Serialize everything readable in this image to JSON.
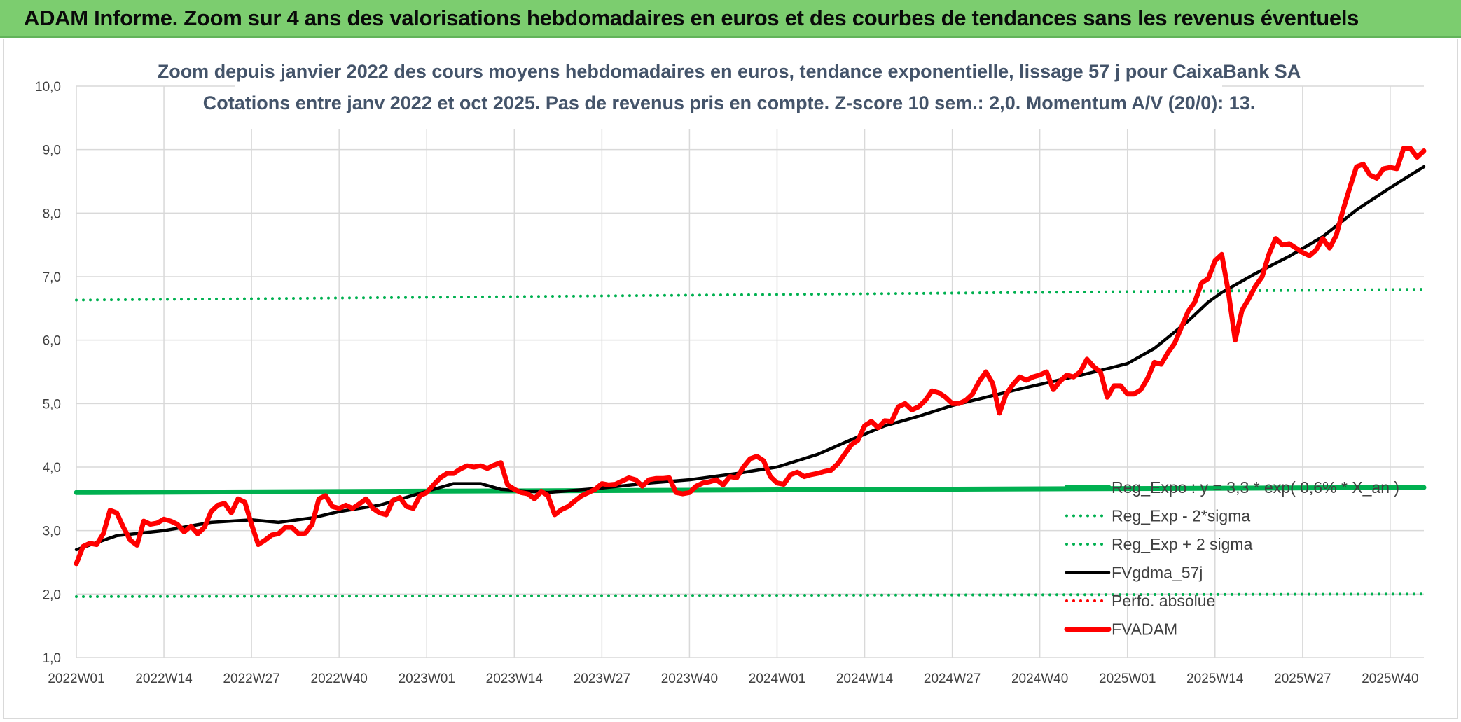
{
  "header": {
    "title": "ADAM Informe. Zoom sur 4 ans des valorisations hebdomadaires en euros et des courbes de tendances sans les revenus éventuels"
  },
  "colors": {
    "banner": "#7ccd6f",
    "grid": "#d9d9d9",
    "title_text": "#44546a",
    "green": "#00b050",
    "red": "#ff0000",
    "black": "#000000"
  },
  "chart_data": {
    "type": "line",
    "title": "Zoom depuis janvier 2022 des cours moyens hebdomadaires en euros, tendance exponentielle, lissage 57 j pour CaixaBank SA",
    "subtitle": "Cotations entre janv 2022 et oct 2025. Pas de revenus pris en compte. Z-score 10 sem.: 2,0. Momentum A/V (20/0): 13.",
    "xlabel": "",
    "ylabel": "",
    "ylim": [
      1.0,
      10.0
    ],
    "y_ticks": [
      "1,0",
      "2,0",
      "3,0",
      "4,0",
      "5,0",
      "6,0",
      "7,0",
      "8,0",
      "9,0",
      "10,0"
    ],
    "x_tick_labels": [
      "2022W01",
      "2022W14",
      "2022W27",
      "2022W40",
      "2023W01",
      "2023W14",
      "2023W27",
      "2023W40",
      "2024W01",
      "2024W14",
      "2024W27",
      "2024W40",
      "2025W01",
      "2025W14",
      "2025W27",
      "2025W40"
    ],
    "x_tick_index": [
      0,
      13,
      26,
      39,
      52,
      65,
      78,
      91,
      104,
      117,
      130,
      143,
      156,
      169,
      182,
      195
    ],
    "x_count": 201,
    "grid": true,
    "legend_position": "bottom-right",
    "series": [
      {
        "name": "Reg_Expo : y = 3,3 * exp( 0,6% * X_an )",
        "style": "solid-thick",
        "color": "#00b050",
        "points": [
          [
            0,
            3.6
          ],
          [
            200,
            3.68
          ]
        ]
      },
      {
        "name": "Reg_Exp - 2*sigma",
        "style": "dotted",
        "color": "#00b050",
        "points": [
          [
            0,
            1.96
          ],
          [
            200,
            2.0
          ]
        ]
      },
      {
        "name": "Reg_Exp + 2 sigma",
        "style": "dotted",
        "color": "#00b050",
        "points": [
          [
            0,
            6.63
          ],
          [
            200,
            6.8
          ]
        ]
      },
      {
        "name": "FVgdma_57j",
        "style": "solid",
        "color": "#000000",
        "points": [
          [
            0,
            2.7
          ],
          [
            6,
            2.92
          ],
          [
            13,
            3.0
          ],
          [
            20,
            3.13
          ],
          [
            26,
            3.17
          ],
          [
            30,
            3.13
          ],
          [
            35,
            3.2
          ],
          [
            39,
            3.3
          ],
          [
            45,
            3.4
          ],
          [
            52,
            3.62
          ],
          [
            56,
            3.74
          ],
          [
            60,
            3.74
          ],
          [
            63,
            3.65
          ],
          [
            70,
            3.6
          ],
          [
            78,
            3.67
          ],
          [
            85,
            3.75
          ],
          [
            91,
            3.8
          ],
          [
            98,
            3.9
          ],
          [
            104,
            4.0
          ],
          [
            110,
            4.2
          ],
          [
            115,
            4.43
          ],
          [
            120,
            4.65
          ],
          [
            125,
            4.8
          ],
          [
            130,
            4.97
          ],
          [
            135,
            5.1
          ],
          [
            140,
            5.23
          ],
          [
            145,
            5.35
          ],
          [
            150,
            5.47
          ],
          [
            153,
            5.55
          ],
          [
            156,
            5.63
          ],
          [
            160,
            5.87
          ],
          [
            165,
            6.3
          ],
          [
            168,
            6.6
          ],
          [
            170,
            6.75
          ],
          [
            175,
            7.05
          ],
          [
            180,
            7.32
          ],
          [
            185,
            7.63
          ],
          [
            190,
            8.05
          ],
          [
            195,
            8.4
          ],
          [
            200,
            8.73
          ]
        ]
      },
      {
        "name": "Perfo. absolue",
        "style": "dotted",
        "color": "#ff0000",
        "points": []
      },
      {
        "name": "FVADAM",
        "style": "solid-thick",
        "color": "#ff0000",
        "points": [
          [
            0,
            2.48
          ],
          [
            1,
            2.75
          ],
          [
            2,
            2.8
          ],
          [
            3,
            2.78
          ],
          [
            4,
            2.95
          ],
          [
            5,
            3.32
          ],
          [
            6,
            3.28
          ],
          [
            7,
            3.05
          ],
          [
            8,
            2.85
          ],
          [
            9,
            2.77
          ],
          [
            10,
            3.15
          ],
          [
            11,
            3.1
          ],
          [
            12,
            3.12
          ],
          [
            13,
            3.18
          ],
          [
            14,
            3.15
          ],
          [
            15,
            3.1
          ],
          [
            16,
            2.98
          ],
          [
            17,
            3.07
          ],
          [
            18,
            2.95
          ],
          [
            19,
            3.05
          ],
          [
            20,
            3.3
          ],
          [
            21,
            3.4
          ],
          [
            22,
            3.43
          ],
          [
            23,
            3.28
          ],
          [
            24,
            3.5
          ],
          [
            25,
            3.45
          ],
          [
            26,
            3.1
          ],
          [
            27,
            2.78
          ],
          [
            28,
            2.85
          ],
          [
            29,
            2.93
          ],
          [
            30,
            2.95
          ],
          [
            31,
            3.05
          ],
          [
            32,
            3.05
          ],
          [
            33,
            2.95
          ],
          [
            34,
            2.96
          ],
          [
            35,
            3.1
          ],
          [
            36,
            3.5
          ],
          [
            37,
            3.55
          ],
          [
            38,
            3.38
          ],
          [
            39,
            3.35
          ],
          [
            40,
            3.4
          ],
          [
            41,
            3.35
          ],
          [
            42,
            3.42
          ],
          [
            43,
            3.5
          ],
          [
            44,
            3.35
          ],
          [
            45,
            3.28
          ],
          [
            46,
            3.25
          ],
          [
            47,
            3.48
          ],
          [
            48,
            3.52
          ],
          [
            49,
            3.38
          ],
          [
            50,
            3.35
          ],
          [
            51,
            3.55
          ],
          [
            52,
            3.6
          ],
          [
            53,
            3.72
          ],
          [
            54,
            3.83
          ],
          [
            55,
            3.9
          ],
          [
            56,
            3.9
          ],
          [
            57,
            3.97
          ],
          [
            58,
            4.02
          ],
          [
            59,
            4.0
          ],
          [
            60,
            4.02
          ],
          [
            61,
            3.98
          ],
          [
            62,
            4.03
          ],
          [
            63,
            4.07
          ],
          [
            64,
            3.72
          ],
          [
            65,
            3.65
          ],
          [
            66,
            3.6
          ],
          [
            67,
            3.58
          ],
          [
            68,
            3.5
          ],
          [
            69,
            3.62
          ],
          [
            70,
            3.55
          ],
          [
            71,
            3.25
          ],
          [
            72,
            3.33
          ],
          [
            73,
            3.38
          ],
          [
            74,
            3.47
          ],
          [
            75,
            3.55
          ],
          [
            76,
            3.6
          ],
          [
            77,
            3.65
          ],
          [
            78,
            3.74
          ],
          [
            79,
            3.72
          ],
          [
            80,
            3.73
          ],
          [
            81,
            3.78
          ],
          [
            82,
            3.83
          ],
          [
            83,
            3.8
          ],
          [
            84,
            3.7
          ],
          [
            85,
            3.8
          ],
          [
            86,
            3.82
          ],
          [
            87,
            3.82
          ],
          [
            88,
            3.83
          ],
          [
            89,
            3.6
          ],
          [
            90,
            3.58
          ],
          [
            91,
            3.6
          ],
          [
            92,
            3.7
          ],
          [
            93,
            3.75
          ],
          [
            94,
            3.77
          ],
          [
            95,
            3.8
          ],
          [
            96,
            3.72
          ],
          [
            97,
            3.85
          ],
          [
            98,
            3.83
          ],
          [
            99,
            4.0
          ],
          [
            100,
            4.13
          ],
          [
            101,
            4.17
          ],
          [
            102,
            4.1
          ],
          [
            103,
            3.85
          ],
          [
            104,
            3.75
          ],
          [
            105,
            3.73
          ],
          [
            106,
            3.88
          ],
          [
            107,
            3.92
          ],
          [
            108,
            3.85
          ],
          [
            109,
            3.88
          ],
          [
            110,
            3.9
          ],
          [
            111,
            3.93
          ],
          [
            112,
            3.95
          ],
          [
            113,
            4.05
          ],
          [
            114,
            4.2
          ],
          [
            115,
            4.35
          ],
          [
            116,
            4.42
          ],
          [
            117,
            4.65
          ],
          [
            118,
            4.72
          ],
          [
            119,
            4.62
          ],
          [
            120,
            4.73
          ],
          [
            121,
            4.72
          ],
          [
            122,
            4.95
          ],
          [
            123,
            5.0
          ],
          [
            124,
            4.9
          ],
          [
            125,
            4.95
          ],
          [
            126,
            5.05
          ],
          [
            127,
            5.2
          ],
          [
            128,
            5.17
          ],
          [
            129,
            5.1
          ],
          [
            130,
            5.0
          ],
          [
            131,
            5.0
          ],
          [
            132,
            5.05
          ],
          [
            133,
            5.15
          ],
          [
            134,
            5.35
          ],
          [
            135,
            5.5
          ],
          [
            136,
            5.32
          ],
          [
            137,
            4.85
          ],
          [
            138,
            5.15
          ],
          [
            139,
            5.3
          ],
          [
            140,
            5.42
          ],
          [
            141,
            5.37
          ],
          [
            142,
            5.42
          ],
          [
            143,
            5.45
          ],
          [
            144,
            5.5
          ],
          [
            145,
            5.22
          ],
          [
            146,
            5.35
          ],
          [
            147,
            5.45
          ],
          [
            148,
            5.42
          ],
          [
            149,
            5.5
          ],
          [
            150,
            5.7
          ],
          [
            151,
            5.58
          ],
          [
            152,
            5.5
          ],
          [
            153,
            5.1
          ],
          [
            154,
            5.28
          ],
          [
            155,
            5.28
          ],
          [
            156,
            5.15
          ],
          [
            157,
            5.15
          ],
          [
            158,
            5.22
          ],
          [
            159,
            5.4
          ],
          [
            160,
            5.65
          ],
          [
            161,
            5.62
          ],
          [
            162,
            5.8
          ],
          [
            163,
            5.95
          ],
          [
            164,
            6.2
          ],
          [
            165,
            6.45
          ],
          [
            166,
            6.6
          ],
          [
            167,
            6.9
          ],
          [
            168,
            6.97
          ],
          [
            169,
            7.25
          ],
          [
            170,
            7.35
          ],
          [
            171,
            6.75
          ],
          [
            172,
            6.0
          ],
          [
            173,
            6.47
          ],
          [
            174,
            6.65
          ],
          [
            175,
            6.85
          ],
          [
            176,
            7.0
          ],
          [
            177,
            7.35
          ],
          [
            178,
            7.6
          ],
          [
            179,
            7.5
          ],
          [
            180,
            7.52
          ],
          [
            181,
            7.45
          ],
          [
            182,
            7.38
          ],
          [
            183,
            7.33
          ],
          [
            184,
            7.42
          ],
          [
            185,
            7.6
          ],
          [
            186,
            7.45
          ],
          [
            187,
            7.65
          ],
          [
            188,
            8.05
          ],
          [
            189,
            8.4
          ],
          [
            190,
            8.73
          ],
          [
            191,
            8.77
          ],
          [
            192,
            8.6
          ],
          [
            193,
            8.55
          ],
          [
            194,
            8.7
          ],
          [
            195,
            8.72
          ],
          [
            196,
            8.7
          ],
          [
            197,
            9.02
          ],
          [
            198,
            9.02
          ],
          [
            199,
            8.88
          ],
          [
            200,
            8.98
          ]
        ]
      }
    ]
  }
}
